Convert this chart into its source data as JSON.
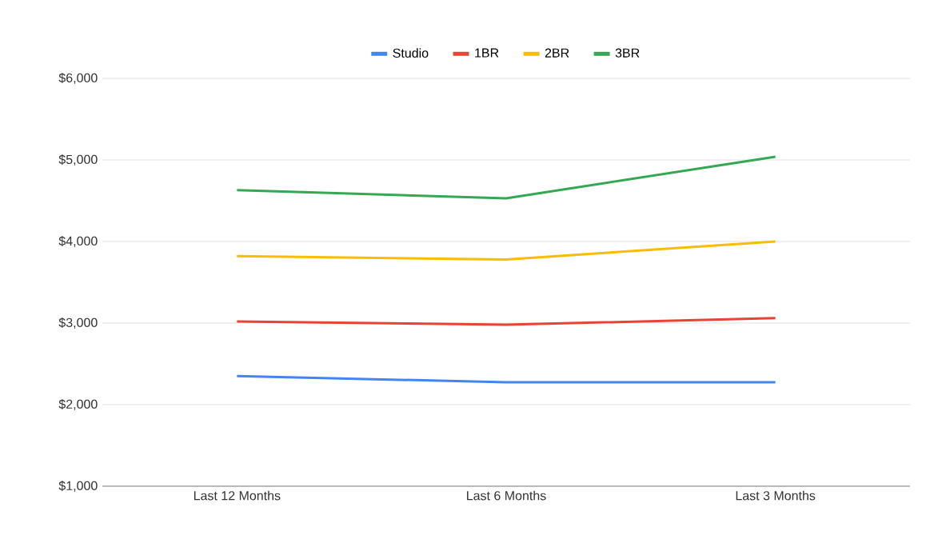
{
  "chart_data": {
    "type": "line",
    "categories": [
      "Last 12 Months",
      "Last 6 Months",
      "Last 3 Months"
    ],
    "series": [
      {
        "name": "Studio",
        "color": "#4285f4",
        "values": [
          2350,
          2275,
          2275
        ]
      },
      {
        "name": "1BR",
        "color": "#ea4335",
        "values": [
          3020,
          2980,
          3060
        ]
      },
      {
        "name": "2BR",
        "color": "#fbbc04",
        "values": [
          3820,
          3780,
          4000
        ]
      },
      {
        "name": "3BR",
        "color": "#34a853",
        "values": [
          4630,
          4530,
          5040
        ]
      }
    ],
    "ylim": [
      1000,
      6000
    ],
    "yticks": [
      {
        "value": 1000,
        "label": "$1,000"
      },
      {
        "value": 2000,
        "label": "$2,000"
      },
      {
        "value": 3000,
        "label": "$3,000"
      },
      {
        "value": 4000,
        "label": "$4,000"
      },
      {
        "value": 5000,
        "label": "$5,000"
      },
      {
        "value": 6000,
        "label": "$6,000"
      }
    ],
    "grid": "y",
    "legend": "top",
    "marker": "none",
    "line_style": "solid"
  }
}
